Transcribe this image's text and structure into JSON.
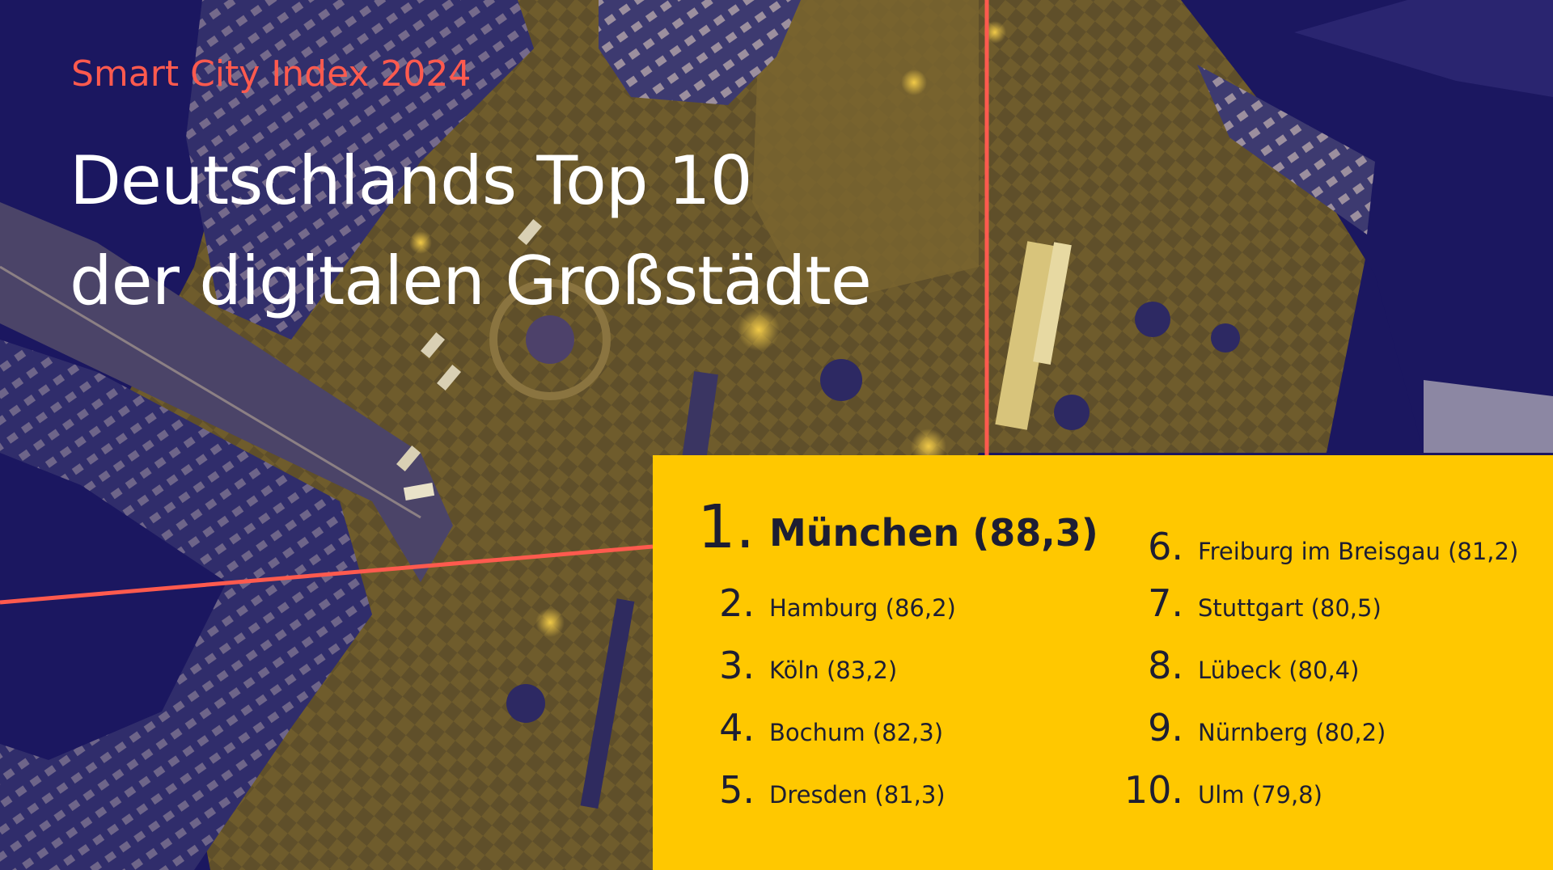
{
  "colors": {
    "background": "#1b1760",
    "accent": "#ff5a4e",
    "panel": "#ffc800",
    "headline": "#ffffff",
    "list_text": "#1d1e33"
  },
  "kicker": "Smart City Index 2024",
  "headline": {
    "line1": "Deutschlands Top 10",
    "line2": "der digitalen Großstädte"
  },
  "ranking": [
    {
      "rank": "1.",
      "city": "München (88,3)"
    },
    {
      "rank": "2.",
      "city": "Hamburg (86,2)"
    },
    {
      "rank": "3.",
      "city": "Köln (83,2)"
    },
    {
      "rank": "4.",
      "city": "Bochum (82,3)"
    },
    {
      "rank": "5.",
      "city": "Dresden (81,3)"
    },
    {
      "rank": "6.",
      "city": "Freiburg im Breisgau (81,2)"
    },
    {
      "rank": "7.",
      "city": "Stuttgart (80,5)"
    },
    {
      "rank": "8.",
      "city": "Lübeck (80,4)"
    },
    {
      "rank": "9.",
      "city": "Nürnberg (80,2)"
    },
    {
      "rank": "10.",
      "city": "Ulm (79,8)"
    }
  ]
}
